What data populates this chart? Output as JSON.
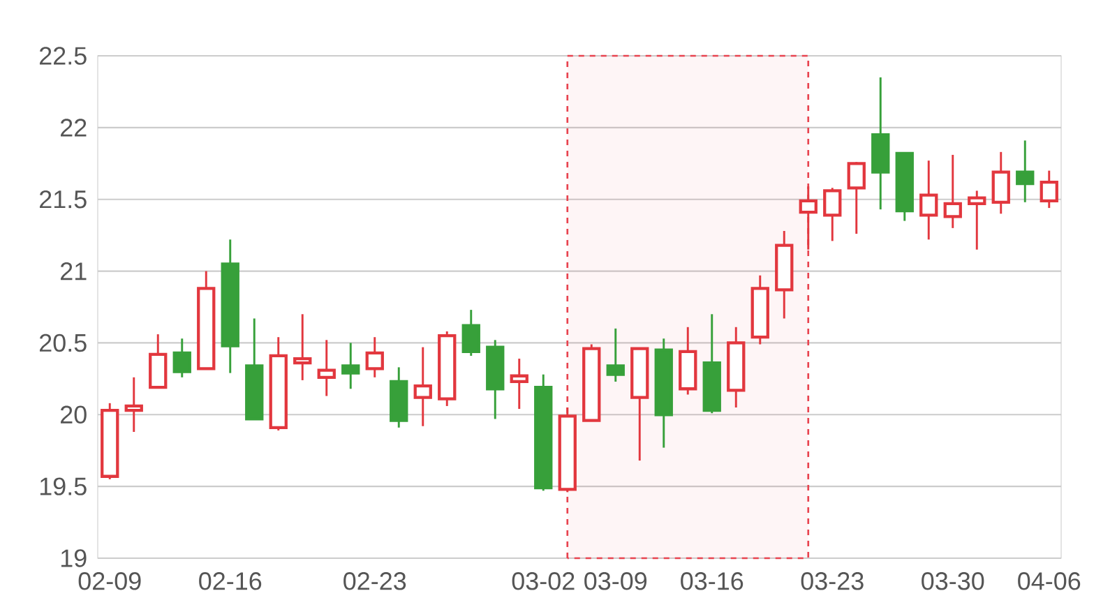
{
  "chart_data": {
    "type": "candlestick",
    "categories": [
      "02-09",
      null,
      null,
      null,
      null,
      "02-16",
      null,
      null,
      null,
      null,
      null,
      "02-23",
      null,
      null,
      null,
      null,
      null,
      null,
      "03-02",
      null,
      null,
      "03-09",
      null,
      null,
      null,
      "03-16",
      null,
      null,
      null,
      null,
      "03-23",
      null,
      null,
      null,
      null,
      "03-30",
      null,
      null,
      null,
      "04-06"
    ],
    "ohlc": [
      [
        19.57,
        20.08,
        19.55,
        20.03
      ],
      [
        20.03,
        20.26,
        19.88,
        20.06
      ],
      [
        20.19,
        20.56,
        20.19,
        20.42
      ],
      [
        20.43,
        20.53,
        20.26,
        20.3
      ],
      [
        20.32,
        21.0,
        20.32,
        20.88
      ],
      [
        21.05,
        21.22,
        20.29,
        20.48
      ],
      [
        20.34,
        20.67,
        19.97,
        19.97
      ],
      [
        19.91,
        20.54,
        19.89,
        20.41
      ],
      [
        20.36,
        20.7,
        20.24,
        20.39
      ],
      [
        20.26,
        20.52,
        20.13,
        20.31
      ],
      [
        20.34,
        20.5,
        20.18,
        20.29
      ],
      [
        20.32,
        20.54,
        20.26,
        20.43
      ],
      [
        20.23,
        20.33,
        19.91,
        19.96
      ],
      [
        20.12,
        20.47,
        19.92,
        20.2
      ],
      [
        20.11,
        20.58,
        20.06,
        20.55
      ],
      [
        20.62,
        20.73,
        20.41,
        20.44
      ],
      [
        20.47,
        20.52,
        19.97,
        20.18
      ],
      [
        20.23,
        20.39,
        20.04,
        20.27
      ],
      [
        20.19,
        20.28,
        19.47,
        19.49
      ],
      [
        19.48,
        20.05,
        19.46,
        19.99
      ],
      [
        19.96,
        20.49,
        19.96,
        20.46
      ],
      [
        20.34,
        20.6,
        20.23,
        20.28
      ],
      [
        20.12,
        20.46,
        19.68,
        20.46
      ],
      [
        20.45,
        20.53,
        19.77,
        20.0
      ],
      [
        20.18,
        20.61,
        20.14,
        20.44
      ],
      [
        20.36,
        20.7,
        20.01,
        20.03
      ],
      [
        20.17,
        20.61,
        20.05,
        20.5
      ],
      [
        20.54,
        20.97,
        20.49,
        20.88
      ],
      [
        20.87,
        21.28,
        20.67,
        21.18
      ],
      [
        21.41,
        21.59,
        21.15,
        21.49
      ],
      [
        21.39,
        21.58,
        21.21,
        21.56
      ],
      [
        21.58,
        21.76,
        21.26,
        21.75
      ],
      [
        21.95,
        22.35,
        21.43,
        21.69
      ],
      [
        21.82,
        21.82,
        21.35,
        21.42
      ],
      [
        21.39,
        21.77,
        21.22,
        21.53
      ],
      [
        21.38,
        21.81,
        21.3,
        21.47
      ],
      [
        21.47,
        21.56,
        21.15,
        21.51
      ],
      [
        21.48,
        21.83,
        21.4,
        21.69
      ],
      [
        21.69,
        21.91,
        21.48,
        21.61
      ],
      [
        21.49,
        21.7,
        21.44,
        21.62
      ]
    ],
    "colors": [
      "#e2373e",
      "#e2373e",
      "#e2373e",
      "#37a03a",
      "#e2373e",
      "#37a03a",
      "#37a03a",
      "#e2373e",
      "#e2373e",
      "#e2373e",
      "#37a03a",
      "#e2373e",
      "#37a03a",
      "#e2373e",
      "#e2373e",
      "#37a03a",
      "#37a03a",
      "#e2373e",
      "#37a03a",
      "#e2373e",
      "#e2373e",
      "#37a03a",
      "#e2373e",
      "#37a03a",
      "#e2373e",
      "#37a03a",
      "#e2373e",
      "#e2373e",
      "#e2373e",
      "#e2373e",
      "#e2373e",
      "#e2373e",
      "#37a03a",
      "#37a03a",
      "#e2373e",
      "#e2373e",
      "#e2373e",
      "#e2373e",
      "#37a03a",
      "#e2373e"
    ],
    "ylim": [
      19,
      22.5
    ],
    "yticks": [
      19,
      19.5,
      20,
      20.5,
      21,
      21.5,
      22,
      22.5
    ],
    "grid": "y"
  }
}
